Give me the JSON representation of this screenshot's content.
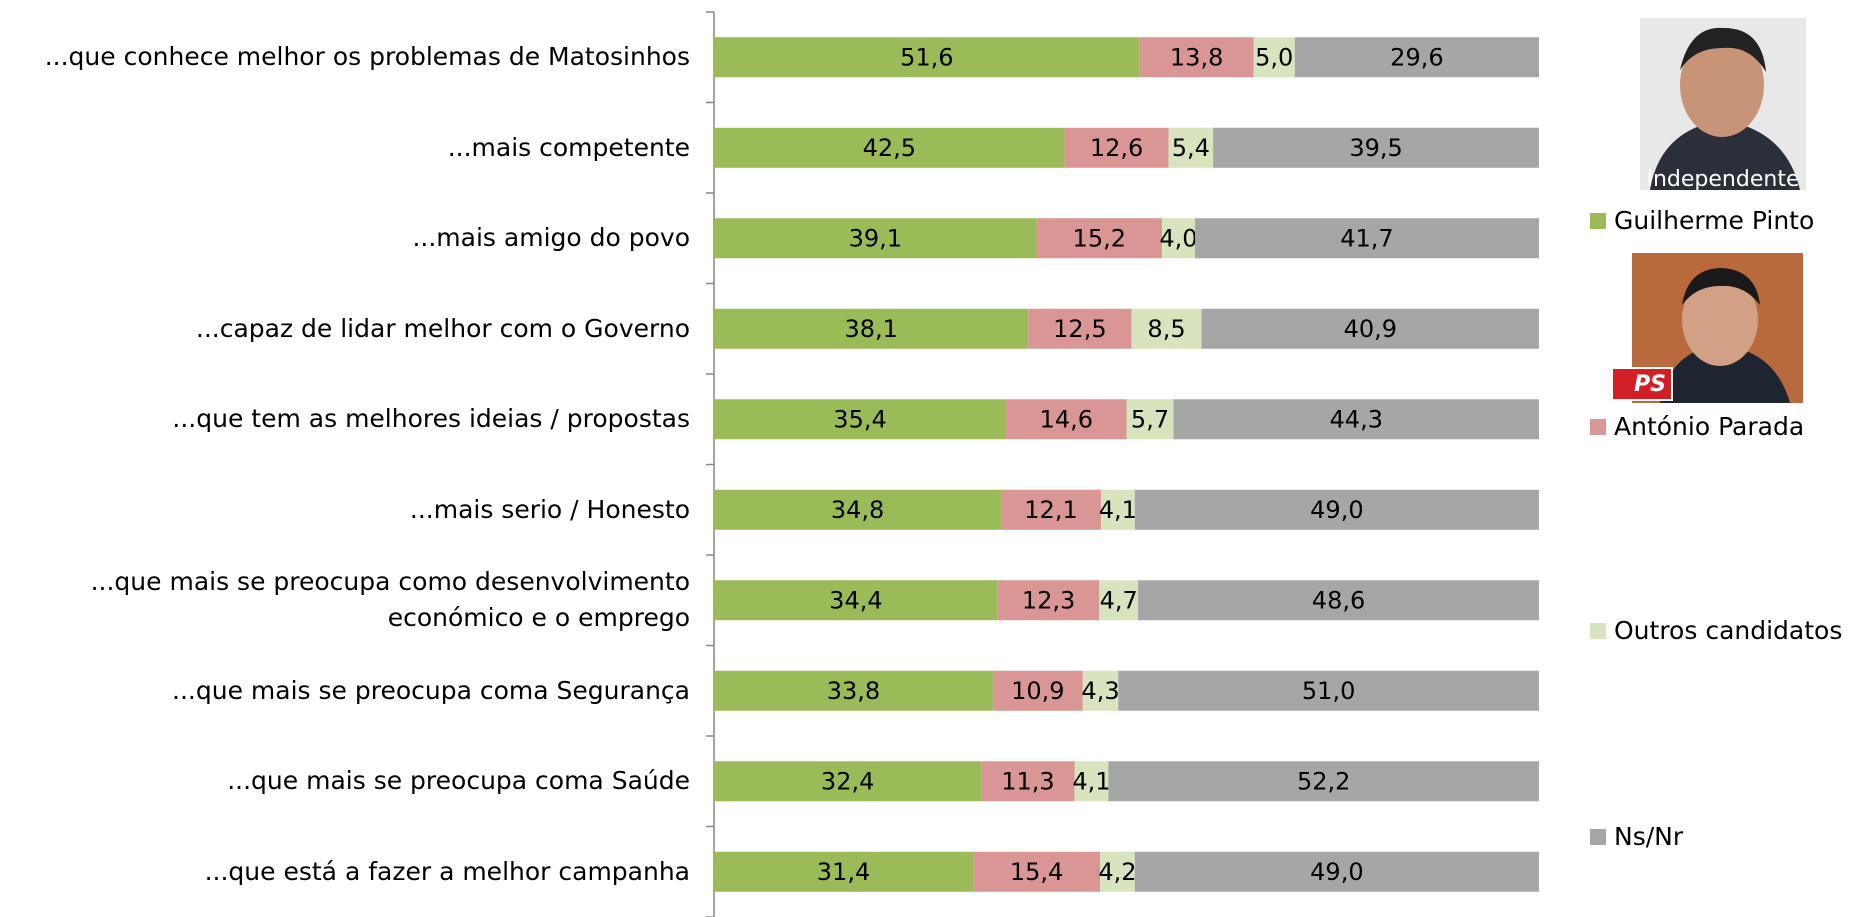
{
  "chart_data": {
    "type": "stacked-barh",
    "categories": [
      "...que conhece melhor os problemas de Matosinhos",
      "...mais competente",
      "...mais amigo do povo",
      "...capaz de lidar melhor com o Governo",
      "...que tem as melhores ideias / propostas",
      "...mais serio / Honesto",
      "...que mais se preocupa como desenvolvimento económico e o emprego",
      "...que mais se preocupa coma Segurança",
      "...que mais se preocupa coma Saúde",
      "...que está a fazer a melhor campanha"
    ],
    "xlim": [
      0,
      100
    ],
    "series": [
      {
        "name": "Guilherme Pinto",
        "color": "#9bbb59",
        "values": [
          51.6,
          42.5,
          39.1,
          38.1,
          35.4,
          34.8,
          34.4,
          33.8,
          32.4,
          31.4
        ],
        "value_labels": [
          "51,6",
          "42,5",
          "39,1",
          "38,1",
          "35,4",
          "34,8",
          "34,4",
          "33,8",
          "32,4",
          "31,4"
        ]
      },
      {
        "name": "António Parada",
        "color": "#d99694",
        "values": [
          13.8,
          12.6,
          15.2,
          12.5,
          14.6,
          12.1,
          12.3,
          10.9,
          11.3,
          15.4
        ],
        "value_labels": [
          "13,8",
          "12,6",
          "15,2",
          "12,5",
          "14,6",
          "12,1",
          "12,3",
          "10,9",
          "11,3",
          "15,4"
        ]
      },
      {
        "name": "Outros candidatos",
        "color": "#d7e4bd",
        "values": [
          5.0,
          5.4,
          4.0,
          8.5,
          5.7,
          4.1,
          4.7,
          4.3,
          4.1,
          4.2
        ],
        "value_labels": [
          "5,0",
          "5,4",
          "4,0",
          "8,5",
          "5,7",
          "4,1",
          "4,7",
          "4,3",
          "4,1",
          "4,2"
        ]
      },
      {
        "name": "Ns/Nr",
        "color": "#a6a6a6",
        "values": [
          29.6,
          39.5,
          41.7,
          40.9,
          44.3,
          49.0,
          48.6,
          51.0,
          52.2,
          49.0
        ],
        "value_labels": [
          "29,6",
          "39,5",
          "41,7",
          "40,9",
          "44,3",
          "49,0",
          "48,6",
          "51,0",
          "52,2",
          "49,0"
        ]
      }
    ],
    "photo_captions": [
      "Independente",
      "PS"
    ]
  }
}
